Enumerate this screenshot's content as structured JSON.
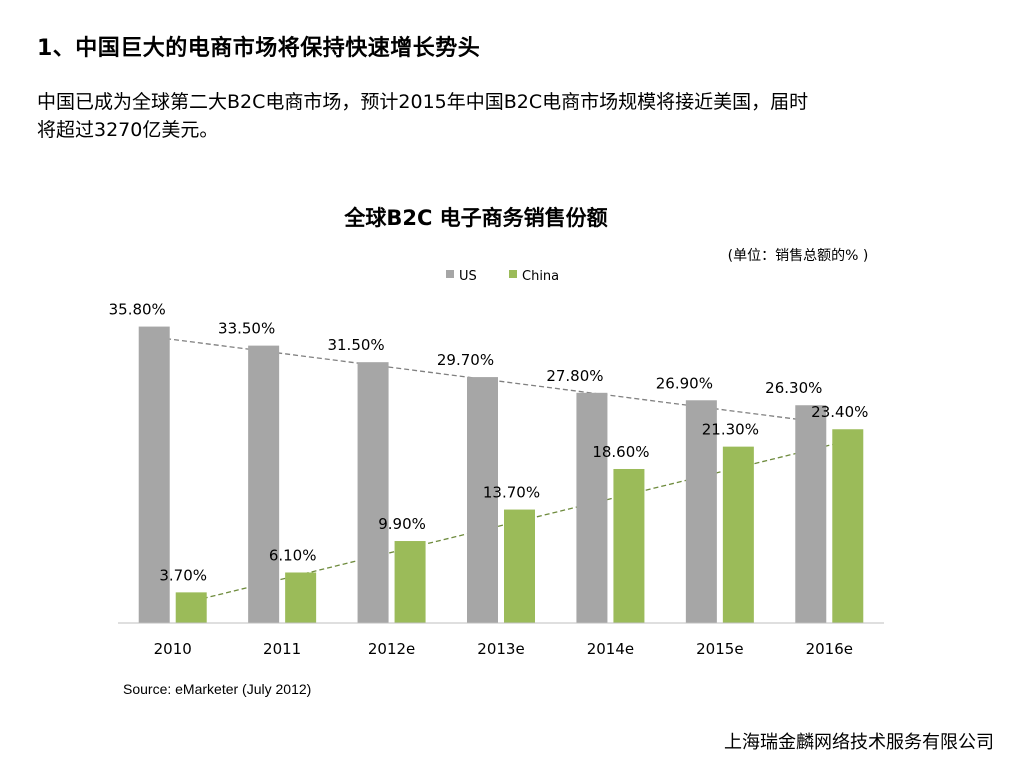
{
  "heading": "1、中国巨大的电商市场将保持快速增长势头",
  "intro": {
    "line1": "中国已成为全球第二大B2C电商市场，预计2015年中国B2C电商市场规模将接近美国，届时",
    "line2": "将超过3270亿美元。"
  },
  "chart_data": {
    "type": "bar",
    "title": "全球B2C 电子商务销售份额",
    "unit_note": "(单位：销售总额的% )",
    "categories": [
      "2010",
      "2011",
      "2012e",
      "2013e",
      "2014e",
      "2015e",
      "2016e"
    ],
    "series": [
      {
        "name": "US",
        "color": "#a6a6a6",
        "values": [
          35.8,
          33.5,
          31.5,
          29.7,
          27.8,
          26.9,
          26.3
        ],
        "labels": [
          "35.80%",
          "33.50%",
          "31.50%",
          "29.70%",
          "27.80%",
          "26.90%",
          "26.30%"
        ]
      },
      {
        "name": "China",
        "color": "#9bbb59",
        "values": [
          3.7,
          6.1,
          9.9,
          13.7,
          18.6,
          21.3,
          23.4
        ],
        "labels": [
          "3.70%",
          "6.10%",
          "9.90%",
          "13.70%",
          "18.60%",
          "21.30%",
          "23.40%"
        ]
      }
    ],
    "ylim": [
      0,
      40
    ],
    "grid": false,
    "legend": "top-center",
    "trendlines": [
      {
        "series": "US",
        "color": "#808080",
        "style": "dashed-arrow"
      },
      {
        "series": "China",
        "color": "#6e8b3d",
        "style": "dashed-arrow"
      }
    ]
  },
  "source": "Source: eMarketer (July 2012)",
  "company": "上海瑞金麟网络技术服务有限公司"
}
